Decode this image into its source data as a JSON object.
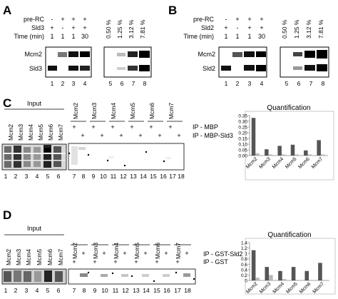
{
  "panelA": {
    "letter": "A",
    "row_labels": [
      "pre-RC",
      "Sld3",
      "Time (min)"
    ],
    "pre_rc_signs": [
      "-",
      "+",
      "+",
      "+"
    ],
    "sld_signs": [
      "+",
      "-",
      "+",
      "+"
    ],
    "time_values": [
      "1",
      "1",
      "1",
      "30"
    ],
    "percent_labels": [
      "0.50 %",
      "1.25 %",
      "3.12 %",
      "7.81 %"
    ],
    "band_labels": [
      "Mcm2",
      "Sld3"
    ],
    "lane_numbers": [
      "1",
      "2",
      "3",
      "4",
      "5",
      "6",
      "7",
      "8"
    ]
  },
  "panelB": {
    "letter": "B",
    "row_labels": [
      "pre-RC",
      "Sld2",
      "Time (min)"
    ],
    "pre_rc_signs": [
      "-",
      "+",
      "+",
      "+"
    ],
    "sld_signs": [
      "+",
      "-",
      "+",
      "+"
    ],
    "time_values": [
      "1",
      "1",
      "1",
      "30"
    ],
    "percent_labels": [
      "0.50 %",
      "1.25 %",
      "3.12 %",
      "7.81 %"
    ],
    "band_labels": [
      "Mcm2",
      "Sld2"
    ],
    "lane_numbers": [
      "1",
      "2",
      "3",
      "4",
      "5",
      "6",
      "7",
      "8"
    ]
  },
  "panelC": {
    "letter": "C",
    "input_label": "Input",
    "input_lanes": [
      "Mcm2",
      "Mcm3",
      "Mcm4",
      "Mcm5",
      "Mcm6",
      "Mcm7"
    ],
    "ip_groups": [
      "Mcm2",
      "Mcm3",
      "Mcm4",
      "Mcm5",
      "Mcm6",
      "Mcm7"
    ],
    "ip_row_labels": [
      "IP - MBP",
      "IP - MBP-Sld3"
    ],
    "lane_numbers": [
      "1",
      "2",
      "3",
      "4",
      "5",
      "6",
      "7",
      "8",
      "9",
      "10",
      "11",
      "12",
      "13",
      "14",
      "15",
      "16",
      "17",
      "18"
    ]
  },
  "panelD": {
    "letter": "D",
    "input_label": "Input",
    "input_lanes": [
      "Mcm2",
      "Mcm3",
      "Mcm4",
      "Mcm5",
      "Mcm6",
      "Mcm7"
    ],
    "ip_groups": [
      "Mcm2",
      "Mcm3",
      "Mcm4",
      "Mcm5",
      "Mcm6",
      "Mcm7"
    ],
    "ip_row_labels": [
      "IP - GST-Sld2",
      "IP - GST"
    ],
    "lane_numbers": [
      "1",
      "2",
      "3",
      "4",
      "5",
      "6",
      "7",
      "8",
      "9",
      "10",
      "11",
      "12",
      "13",
      "14",
      "15",
      "16",
      "17",
      "18"
    ]
  },
  "chart_data": [
    {
      "type": "bar",
      "title": "Quantification",
      "categories": [
        "Mcm2",
        "Mcm3",
        "Mcm4",
        "Mcm5",
        "Mcm6",
        "Mcm7"
      ],
      "series": [
        {
          "values": [
            0.33,
            0.055,
            0.085,
            0.095,
            0.045,
            0.135
          ],
          "color": "#555555"
        },
        {
          "values": [
            0.02,
            0.01,
            0.01,
            0.01,
            0.01,
            0.01
          ],
          "color": "#b8b8b8"
        }
      ],
      "ylim": [
        0,
        0.35
      ],
      "yticks": [
        "0.00",
        "0.05",
        "0.10",
        "0.15",
        "0.20",
        "0.25",
        "0.30",
        "0.35"
      ],
      "grid": false
    },
    {
      "type": "bar",
      "title": "Quantification",
      "categories": [
        "Mcm2",
        "Mcm3",
        "Mcm4",
        "Mcm5",
        "Mcm6",
        "Mcm7"
      ],
      "series": [
        {
          "values": [
            1.12,
            0.5,
            0.35,
            0.5,
            0.35,
            0.65
          ],
          "color": "#555555"
        },
        {
          "values": [
            0.1,
            0.2,
            0.05,
            0.02,
            0.02,
            0.02
          ],
          "color": "#b8b8b8"
        }
      ],
      "ylim": [
        0,
        1.4
      ],
      "yticks": [
        "0",
        "0.2",
        "0.4",
        "0.6",
        "0.8",
        "1",
        "1.2",
        "1.4"
      ],
      "grid": false
    }
  ]
}
